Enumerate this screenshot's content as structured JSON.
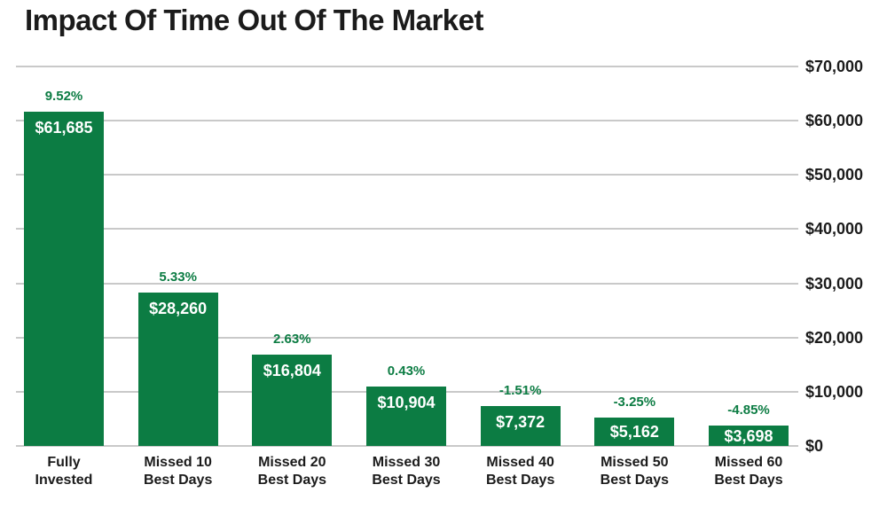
{
  "colors": {
    "bar": "#0c7c43",
    "percent_text": "#0c7c43",
    "grid": "#c9c9c9",
    "text": "#1b1b1b",
    "bar_value_text": "#ffffff",
    "background": "#ffffff"
  },
  "chart_data": {
    "type": "bar",
    "title": "Impact Of Time Out Of The Market",
    "categories": [
      "Fully\nInvested",
      "Missed 10\nBest Days",
      "Missed 20\nBest Days",
      "Missed 30\nBest Days",
      "Missed 40\nBest Days",
      "Missed 50\nBest Days",
      "Missed 60\nBest Days"
    ],
    "values": [
      61685,
      28260,
      16804,
      10904,
      7372,
      5162,
      3698
    ],
    "value_labels": [
      "$61,685",
      "$28,260",
      "$16,804",
      "$10,904",
      "$7,372",
      "$5,162",
      "$3,698"
    ],
    "percent_labels": [
      "9.52%",
      "5.33%",
      "2.63%",
      "0.43%",
      "-1.51%",
      "-3.25%",
      "-4.85%"
    ],
    "y_ticks": [
      {
        "label": "$0",
        "value": 0
      },
      {
        "label": "$10,000",
        "value": 10000
      },
      {
        "label": "$20,000",
        "value": 20000
      },
      {
        "label": "$30,000",
        "value": 30000
      },
      {
        "label": "$40,000",
        "value": 40000
      },
      {
        "label": "$50,000",
        "value": 50000
      },
      {
        "label": "$60,000",
        "value": 60000
      },
      {
        "label": "$70,000",
        "value": 70000
      }
    ],
    "ylim": [
      0,
      70000
    ],
    "grid": true,
    "legend": "none",
    "y_axis_side": "right"
  }
}
